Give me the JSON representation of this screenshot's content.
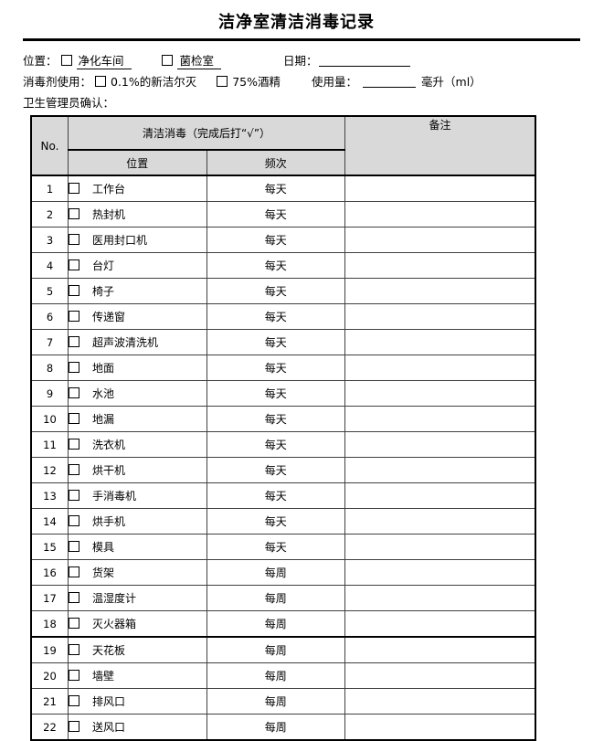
{
  "page": {
    "title": "洁净室清洁消毒记录"
  },
  "form": {
    "location_label": "位置：",
    "location_options": [
      {
        "label": "净化车间"
      },
      {
        "label": "菌检室"
      }
    ],
    "date_label": "日期：",
    "date_value": "",
    "disinfectant_label": "消毒剂使用：",
    "disinfectant_options": [
      {
        "label": "0.1%的新洁尔灭"
      },
      {
        "label": "75%酒精"
      }
    ],
    "usage_label": "使用量：",
    "usage_value": "",
    "usage_unit": "毫升（ml）",
    "manager_confirm_label": "卫生管理员确认："
  },
  "table": {
    "header": {
      "no": "No.",
      "clean_disinfect": "清洁消毒（完成后打“√”）",
      "position": "位置",
      "frequency": "频次",
      "remark": "备注"
    },
    "thick_divider_after_row": "18",
    "rows": [
      {
        "no": "1",
        "item": "工作台",
        "freq": "每天",
        "remark": ""
      },
      {
        "no": "2",
        "item": "热封机",
        "freq": "每天",
        "remark": ""
      },
      {
        "no": "3",
        "item": "医用封口机",
        "freq": "每天",
        "remark": ""
      },
      {
        "no": "4",
        "item": "台灯",
        "freq": "每天",
        "remark": ""
      },
      {
        "no": "5",
        "item": "椅子",
        "freq": "每天",
        "remark": ""
      },
      {
        "no": "6",
        "item": "传递窗",
        "freq": "每天",
        "remark": ""
      },
      {
        "no": "7",
        "item": "超声波清洗机",
        "freq": "每天",
        "remark": ""
      },
      {
        "no": "8",
        "item": "地面",
        "freq": "每天",
        "remark": ""
      },
      {
        "no": "9",
        "item": "水池",
        "freq": "每天",
        "remark": ""
      },
      {
        "no": "10",
        "item": "地漏",
        "freq": "每天",
        "remark": ""
      },
      {
        "no": "11",
        "item": "洗衣机",
        "freq": "每天",
        "remark": ""
      },
      {
        "no": "12",
        "item": "烘干机",
        "freq": "每天",
        "remark": ""
      },
      {
        "no": "13",
        "item": "手消毒机",
        "freq": "每天",
        "remark": ""
      },
      {
        "no": "14",
        "item": "烘手机",
        "freq": "每天",
        "remark": ""
      },
      {
        "no": "15",
        "item": "模具",
        "freq": "每天",
        "remark": ""
      },
      {
        "no": "16",
        "item": "货架",
        "freq": "每周",
        "remark": ""
      },
      {
        "no": "17",
        "item": "温湿度计",
        "freq": "每周",
        "remark": ""
      },
      {
        "no": "18",
        "item": "灭火器箱",
        "freq": "每周",
        "remark": ""
      },
      {
        "no": "19",
        "item": "天花板",
        "freq": "每周",
        "remark": ""
      },
      {
        "no": "20",
        "item": "墙壁",
        "freq": "每周",
        "remark": ""
      },
      {
        "no": "21",
        "item": "排风口",
        "freq": "每周",
        "remark": ""
      },
      {
        "no": "22",
        "item": "送风口",
        "freq": "每周",
        "remark": ""
      }
    ]
  },
  "colors": {
    "header_bg": "#d9d9d9",
    "border": "#000000",
    "grid": "#404040"
  }
}
